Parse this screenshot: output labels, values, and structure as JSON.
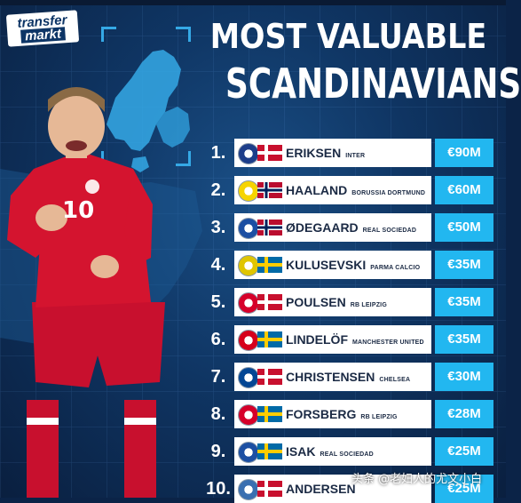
{
  "logo": {
    "line1": "transfer",
    "line2": "markt"
  },
  "title": {
    "line1": "MOST VALUABLE",
    "line2": "SCANDINAVIANS"
  },
  "player_shirt_number": "10",
  "rows": [
    {
      "rank": "1.",
      "name": "ERIKSEN",
      "club": "INTER",
      "value": "€90M",
      "flag": "denmark",
      "club_color": "#1d3e8a"
    },
    {
      "rank": "2.",
      "name": "HAALAND",
      "club": "BORUSSIA DORTMUND",
      "value": "€60M",
      "flag": "norway",
      "club_color": "#f6d400"
    },
    {
      "rank": "3.",
      "name": "ØDEGAARD",
      "club": "REAL SOCIEDAD",
      "value": "€50M",
      "flag": "norway",
      "club_color": "#1c4fa3"
    },
    {
      "rank": "4.",
      "name": "KULUSEVSKI",
      "club": "PARMA CALCIO",
      "value": "€35M",
      "flag": "sweden",
      "club_color": "#e0c500"
    },
    {
      "rank": "5.",
      "name": "POULSEN",
      "club": "RB LEIPZIG",
      "value": "€35M",
      "flag": "denmark",
      "club_color": "#d6002a"
    },
    {
      "rank": "6.",
      "name": "LINDELÖF",
      "club": "MANCHESTER UNITED",
      "value": "€35M",
      "flag": "sweden",
      "club_color": "#d6001c"
    },
    {
      "rank": "7.",
      "name": "CHRISTENSEN",
      "club": "CHELSEA",
      "value": "€30M",
      "flag": "denmark",
      "club_color": "#034694"
    },
    {
      "rank": "8.",
      "name": "FORSBERG",
      "club": "RB LEIPZIG",
      "value": "€28M",
      "flag": "sweden",
      "club_color": "#d6002a"
    },
    {
      "rank": "9.",
      "name": "ISAK",
      "club": "REAL SOCIEDAD",
      "value": "€25M",
      "flag": "sweden",
      "club_color": "#1c4fa3"
    },
    {
      "rank": "10.",
      "name": "ANDERSEN",
      "club": "",
      "value": "€25M",
      "flag": "denmark",
      "club_color": "#3a6fb0"
    }
  ],
  "watermark": "头条 @老妇人的尤文小白",
  "colors": {
    "accent": "#22b7f0",
    "background": "#0f3563",
    "denmark_red": "#c8102e",
    "norway_blue": "#00205b",
    "sweden_blue": "#006aa7",
    "sweden_yellow": "#fecc00"
  }
}
